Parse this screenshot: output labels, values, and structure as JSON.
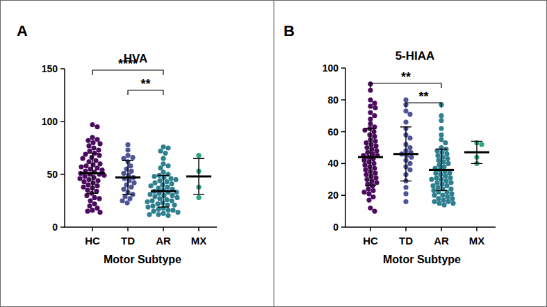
{
  "chart_data": [
    {
      "type": "scatter",
      "panel": "A",
      "title": "HVA",
      "x_label": "Motor Subtype",
      "categories": [
        "HC",
        "TD",
        "AR",
        "MX"
      ],
      "colors": [
        "#4b0c5f",
        "#4e5596",
        "#2e7f8f",
        "#2ba77b"
      ],
      "ylim": [
        0,
        150
      ],
      "yticks": [
        0,
        50,
        100,
        150
      ],
      "points": [
        [
          97,
          95,
          85,
          83,
          82,
          80,
          79,
          77,
          75,
          73,
          72,
          70,
          69,
          68,
          66,
          65,
          63,
          62,
          60,
          59,
          58,
          57,
          56,
          55,
          54,
          53,
          52,
          51,
          50,
          50,
          49,
          48,
          47,
          46,
          45,
          44,
          43,
          42,
          40,
          39,
          38,
          37,
          35,
          34,
          32,
          30,
          28,
          27,
          25,
          22,
          20,
          18,
          16,
          15,
          14
        ],
        [
          78,
          73,
          68,
          66,
          65,
          62,
          58,
          55,
          53,
          51,
          49,
          47,
          46,
          44,
          42,
          40,
          38,
          36,
          33,
          31,
          29,
          27,
          25,
          23
        ],
        [
          76,
          75,
          72,
          70,
          65,
          60,
          58,
          56,
          52,
          50,
          49,
          48,
          47,
          46,
          45,
          44,
          43,
          42,
          41,
          40,
          39,
          38,
          37,
          36,
          35,
          34,
          33,
          33,
          32,
          31,
          30,
          30,
          29,
          28,
          27,
          26,
          25,
          25,
          24,
          23,
          22,
          21,
          21,
          20,
          19,
          18,
          17,
          16,
          16,
          15,
          14,
          13,
          12,
          12,
          11
        ],
        [
          68,
          53,
          38,
          28
        ]
      ],
      "mean": [
        51,
        47,
        34,
        48
      ],
      "sd": [
        19,
        16,
        15,
        17
      ],
      "brackets": [
        {
          "text": "****",
          "between": [
            0,
            2
          ]
        },
        {
          "text": "**",
          "between": [
            1,
            2
          ]
        }
      ]
    },
    {
      "type": "scatter",
      "panel": "B",
      "title": "5-HIAA",
      "x_label": "Motor Subtype",
      "categories": [
        "HC",
        "TD",
        "AR",
        "MX"
      ],
      "colors": [
        "#4b0c5f",
        "#4e5596",
        "#2e7f8f",
        "#2ba77b"
      ],
      "ylim": [
        0,
        100
      ],
      "yticks": [
        0,
        20,
        40,
        60,
        80,
        100
      ],
      "points": [
        [
          90,
          86,
          80,
          78,
          76,
          75,
          72,
          70,
          68,
          65,
          63,
          62,
          61,
          60,
          58,
          57,
          55,
          54,
          53,
          52,
          51,
          50,
          49,
          48,
          47,
          46,
          45,
          45,
          44,
          43,
          42,
          41,
          40,
          39,
          38,
          37,
          36,
          35,
          34,
          33,
          32,
          31,
          30,
          29,
          28,
          27,
          26,
          24,
          23,
          22,
          21,
          19,
          17,
          12,
          10
        ],
        [
          80,
          77,
          73,
          71,
          66,
          62,
          58,
          56,
          52,
          50,
          48,
          47,
          46,
          45,
          44,
          42,
          40,
          38,
          36,
          33,
          29,
          25,
          21,
          16
        ],
        [
          77,
          70,
          67,
          62,
          58,
          55,
          53,
          50,
          49,
          48,
          47,
          46,
          45,
          44,
          43,
          42,
          41,
          40,
          39,
          38,
          37,
          36,
          35,
          34,
          34,
          33,
          32,
          31,
          31,
          30,
          30,
          29,
          28,
          28,
          27,
          26,
          26,
          25,
          24,
          24,
          23,
          22,
          22,
          21,
          20,
          20,
          19,
          18,
          18,
          17,
          16,
          16,
          15,
          14,
          15
        ],
        [
          53,
          52,
          44,
          40
        ]
      ],
      "mean": [
        44,
        46,
        36,
        47
      ],
      "sd": [
        18,
        17,
        13,
        7
      ],
      "brackets": [
        {
          "text": "**",
          "between": [
            0,
            2
          ]
        },
        {
          "text": "**",
          "between": [
            1,
            2
          ]
        }
      ]
    }
  ]
}
